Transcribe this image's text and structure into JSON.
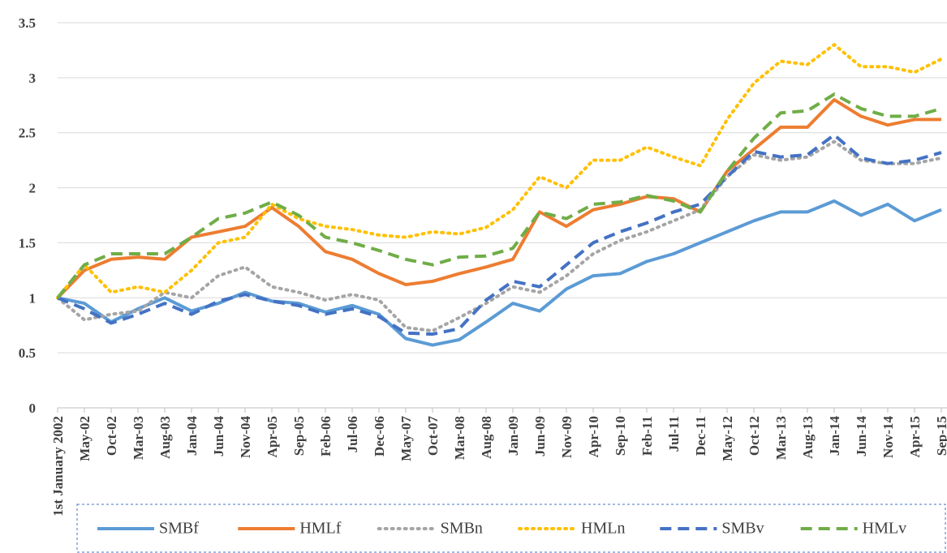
{
  "chart_data": {
    "type": "line",
    "categories": [
      "1st January 2002",
      "May-02",
      "Oct-02",
      "Mar-03",
      "Aug-03",
      "Jan-04",
      "Jun-04",
      "Nov-04",
      "Apr-05",
      "Sep-05",
      "Feb-06",
      "Jul-06",
      "Dec-06",
      "May-07",
      "Oct-07",
      "Mar-08",
      "Aug-08",
      "Jan-09",
      "Jun-09",
      "Nov-09",
      "Apr-10",
      "Sep-10",
      "Feb-11",
      "Jul-11",
      "Dec-11",
      "May-12",
      "Oct-12",
      "Mar-13",
      "Aug-13",
      "Jan-14",
      "Jun-14",
      "Nov-14",
      "Apr-15",
      "Sep-15"
    ],
    "ylim": [
      0,
      3.5
    ],
    "yticks": [
      0,
      0.5,
      1,
      1.5,
      2,
      2.5,
      3,
      3.5
    ],
    "grid": true,
    "legend": "bottom",
    "series": [
      {
        "name": "SMBf",
        "color": "#5b9bd5",
        "style": "solid",
        "values": [
          1,
          0.95,
          0.78,
          0.9,
          1.0,
          0.88,
          0.95,
          1.05,
          0.97,
          0.95,
          0.87,
          0.93,
          0.85,
          0.63,
          0.57,
          0.62,
          0.78,
          0.95,
          0.88,
          1.08,
          1.2,
          1.22,
          1.33,
          1.4,
          1.5,
          1.6,
          1.7,
          1.78,
          1.78,
          1.88,
          1.75,
          1.85,
          1.7,
          1.8
        ]
      },
      {
        "name": "HMLf",
        "color": "#ed7d31",
        "style": "solid",
        "values": [
          1,
          1.25,
          1.35,
          1.37,
          1.35,
          1.55,
          1.6,
          1.65,
          1.82,
          1.65,
          1.42,
          1.35,
          1.22,
          1.12,
          1.15,
          1.22,
          1.28,
          1.35,
          1.78,
          1.65,
          1.8,
          1.85,
          1.92,
          1.9,
          1.78,
          2.15,
          2.35,
          2.55,
          2.55,
          2.8,
          2.65,
          2.57,
          2.62,
          2.62
        ]
      },
      {
        "name": "SMBn",
        "color": "#a5a5a5",
        "style": "dot",
        "values": [
          1,
          0.8,
          0.85,
          0.88,
          1.05,
          1.0,
          1.2,
          1.28,
          1.1,
          1.05,
          0.98,
          1.03,
          0.98,
          0.73,
          0.7,
          0.82,
          0.95,
          1.1,
          1.05,
          1.2,
          1.4,
          1.52,
          1.6,
          1.7,
          1.8,
          2.1,
          2.3,
          2.25,
          2.28,
          2.42,
          2.25,
          2.22,
          2.22,
          2.27
        ]
      },
      {
        "name": "HMLn",
        "color": "#ffc000",
        "style": "dot",
        "values": [
          1,
          1.3,
          1.05,
          1.1,
          1.05,
          1.25,
          1.5,
          1.55,
          1.85,
          1.72,
          1.65,
          1.62,
          1.57,
          1.55,
          1.6,
          1.58,
          1.64,
          1.8,
          2.1,
          2.0,
          2.25,
          2.25,
          2.37,
          2.28,
          2.2,
          2.62,
          2.95,
          3.15,
          3.12,
          3.3,
          3.1,
          3.1,
          3.05,
          3.17
        ]
      },
      {
        "name": "SMBv",
        "color": "#4472c4",
        "style": "dash",
        "values": [
          1,
          0.9,
          0.77,
          0.85,
          0.95,
          0.85,
          0.97,
          1.03,
          0.97,
          0.93,
          0.85,
          0.9,
          0.83,
          0.68,
          0.67,
          0.72,
          0.98,
          1.15,
          1.1,
          1.3,
          1.5,
          1.6,
          1.68,
          1.78,
          1.85,
          2.1,
          2.33,
          2.28,
          2.3,
          2.48,
          2.27,
          2.22,
          2.25,
          2.32
        ]
      },
      {
        "name": "HMLv",
        "color": "#70ad47",
        "style": "dash",
        "values": [
          1,
          1.3,
          1.4,
          1.4,
          1.4,
          1.55,
          1.72,
          1.77,
          1.87,
          1.75,
          1.55,
          1.5,
          1.43,
          1.35,
          1.3,
          1.37,
          1.38,
          1.45,
          1.78,
          1.72,
          1.85,
          1.87,
          1.93,
          1.88,
          1.78,
          2.15,
          2.45,
          2.68,
          2.7,
          2.85,
          2.72,
          2.65,
          2.65,
          2.72
        ]
      }
    ]
  }
}
